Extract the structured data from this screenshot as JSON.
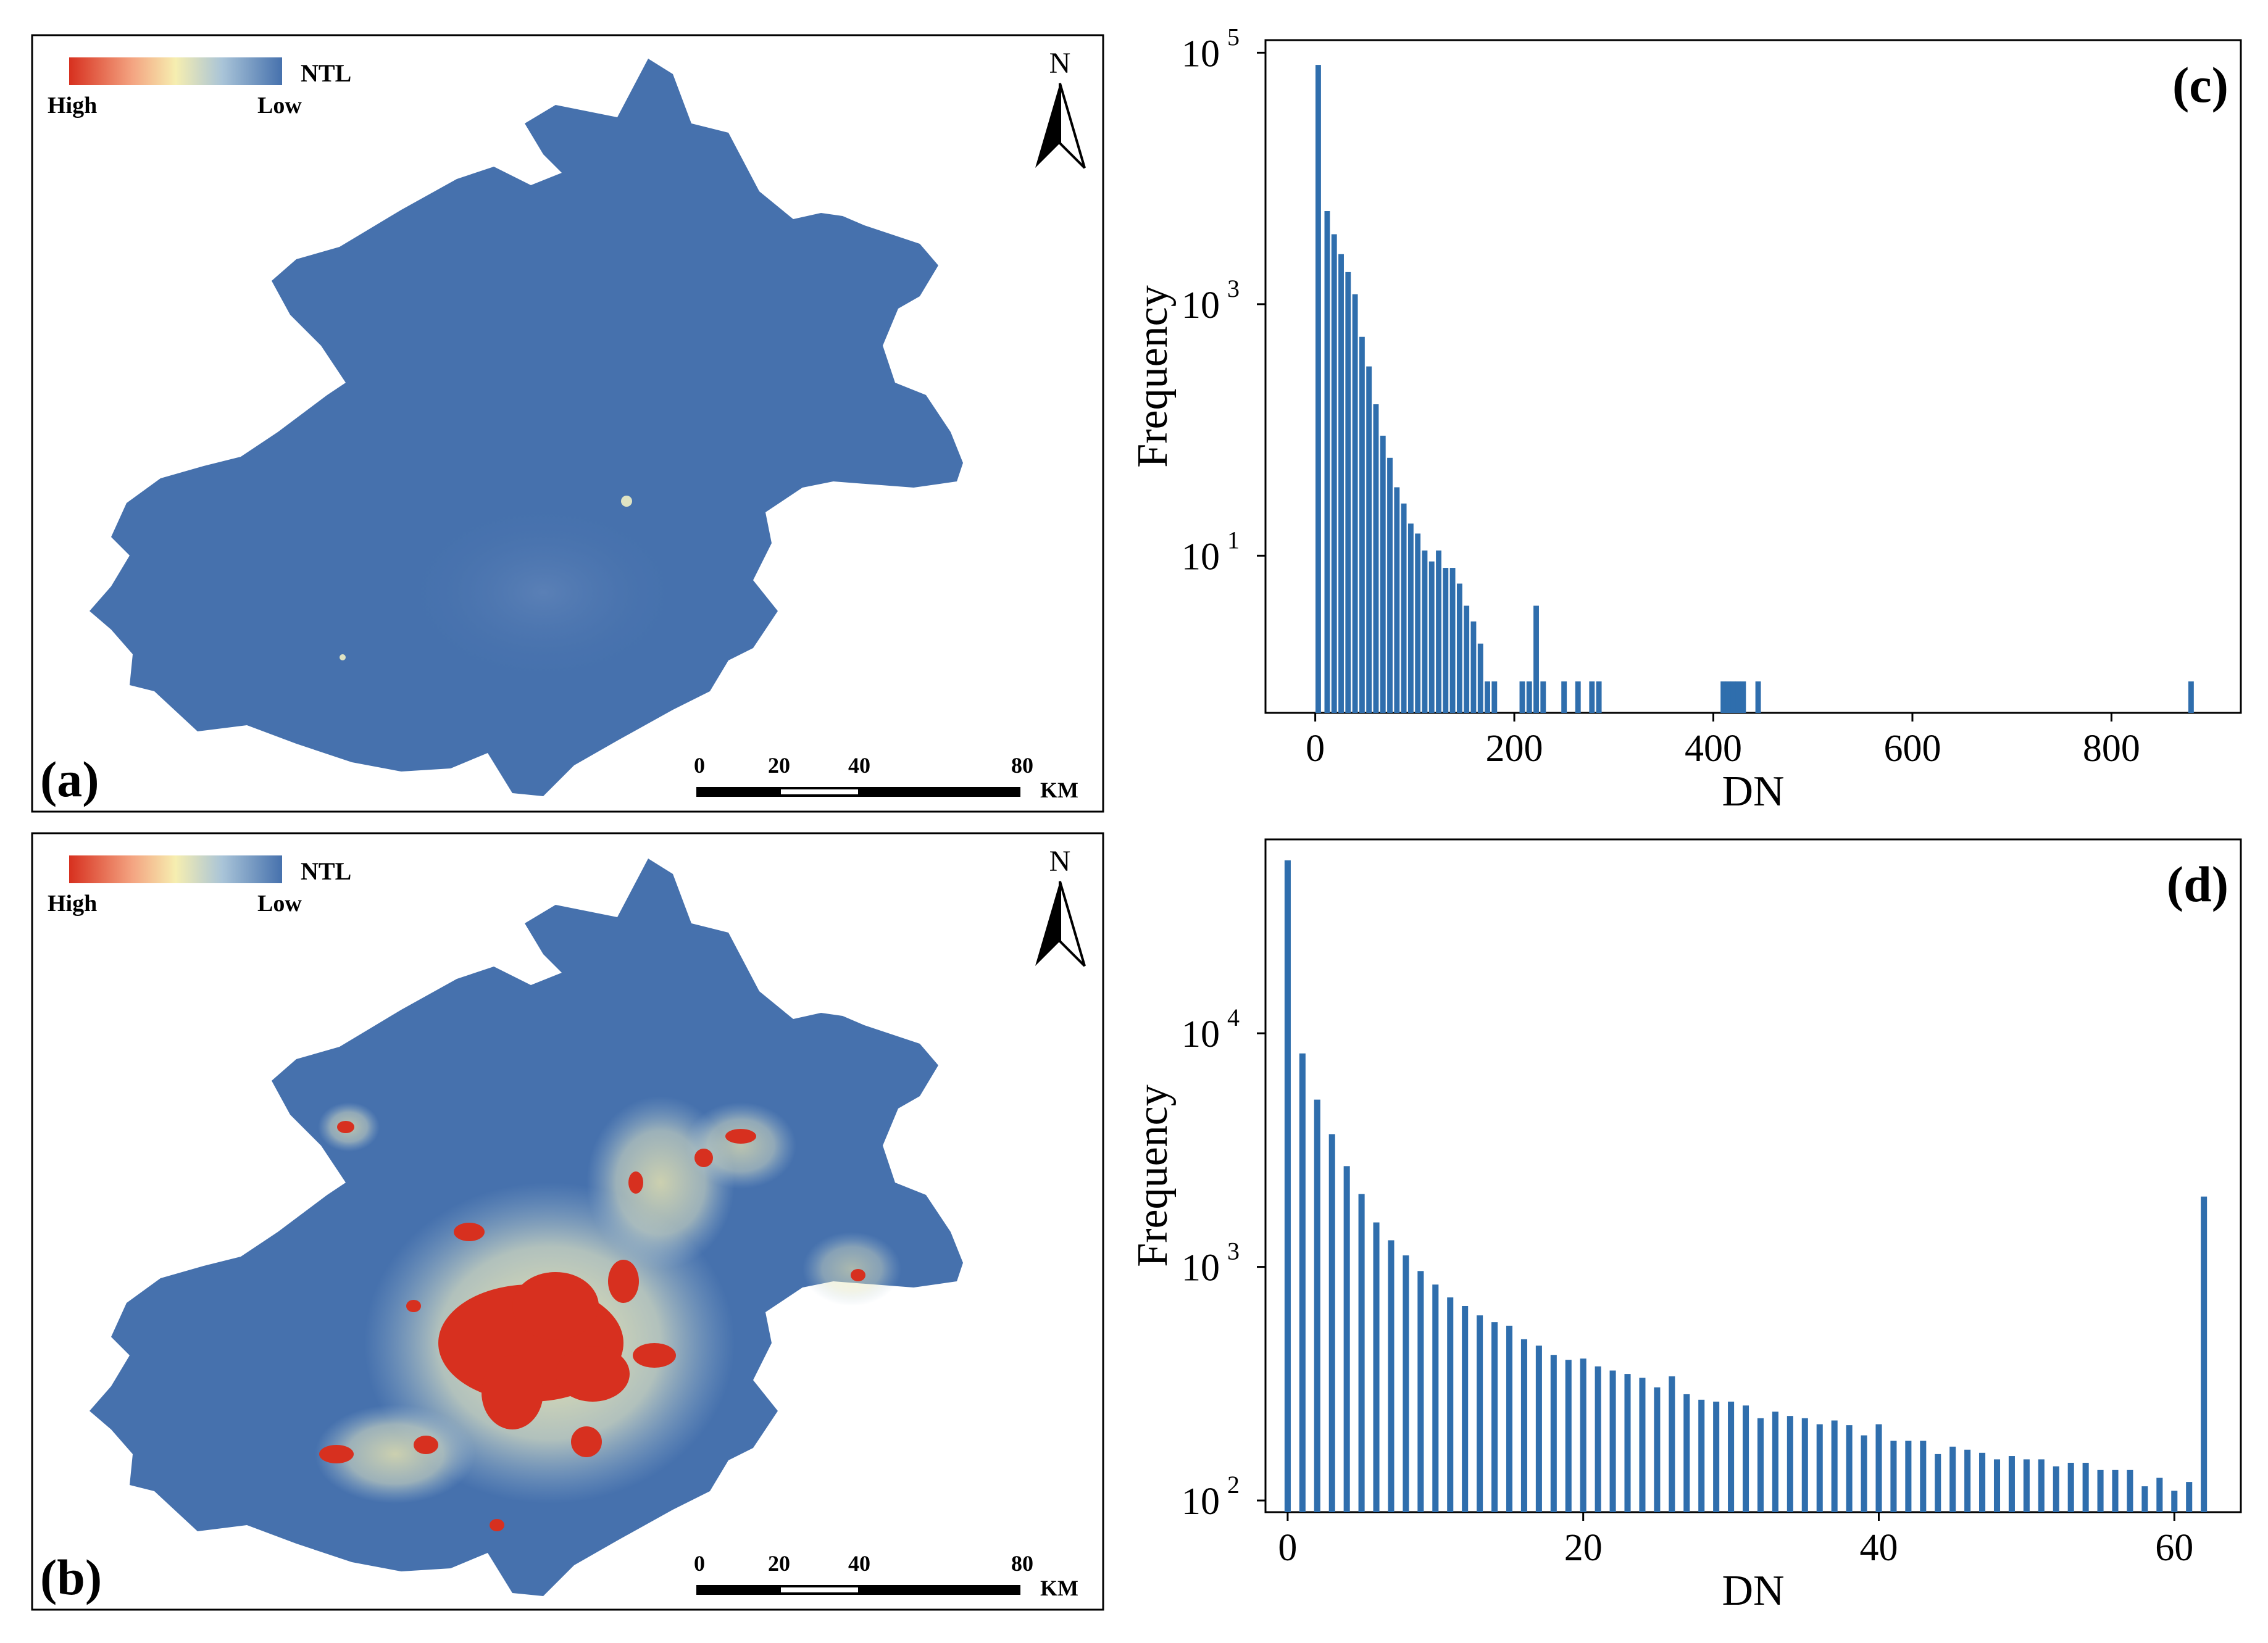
{
  "panels": {
    "a": {
      "label": "(a)",
      "legend": {
        "title": "NTL",
        "high": "High",
        "low": "Low"
      },
      "north": "N",
      "scalebar": {
        "ticks": [
          "0",
          "20",
          "40",
          "80"
        ],
        "unit": "KM"
      }
    },
    "b": {
      "label": "(b)",
      "legend": {
        "title": "NTL",
        "high": "High",
        "low": "Low"
      },
      "north": "N",
      "scalebar": {
        "ticks": [
          "0",
          "20",
          "40",
          "80"
        ],
        "unit": "KM"
      }
    }
  },
  "colors": {
    "high": "#d7301f",
    "mid": "#f6eeb0",
    "low": "#4671ad",
    "bar": "#2f6ead",
    "frame": "#000000"
  },
  "chart_data": [
    {
      "id": "c",
      "panel_label": "(c)",
      "type": "bar",
      "yscale": "log",
      "xlabel": "DN",
      "ylabel": "Frequency",
      "xlim": [
        -50,
        930
      ],
      "ylim_exp": [
        -0.25,
        5.1
      ],
      "xticks": [
        0,
        200,
        400,
        600,
        800
      ],
      "yticks": [
        {
          "exp": 1,
          "base": "10",
          "sup": "1"
        },
        {
          "exp": 3,
          "base": "10",
          "sup": "3"
        },
        {
          "exp": 5,
          "base": "10",
          "sup": "5"
        }
      ],
      "bar_width": 5.5,
      "x": [
        3,
        12,
        19,
        26,
        33,
        40,
        47,
        54,
        61,
        68,
        75,
        82,
        89,
        96,
        103,
        110,
        117,
        124,
        131,
        138,
        145,
        152,
        159,
        166,
        173,
        180,
        208,
        215,
        222,
        229,
        250,
        264,
        278,
        285,
        410,
        415,
        420,
        425,
        430,
        445,
        880
      ],
      "values": [
        80000,
        5500,
        3600,
        2500,
        1800,
        1200,
        550,
        320,
        160,
        90,
        60,
        35,
        26,
        18,
        15,
        11,
        9,
        11,
        8,
        8,
        6,
        4,
        3,
        2,
        1,
        1,
        1,
        1,
        4,
        1,
        1,
        1,
        1,
        1,
        1,
        1,
        1,
        1,
        1,
        1,
        1
      ]
    },
    {
      "id": "d",
      "panel_label": "(d)",
      "type": "bar",
      "yscale": "log",
      "xlabel": "DN",
      "ylabel": "Frequency",
      "xlim": [
        -1.5,
        64.5
      ],
      "ylim_exp": [
        1.95,
        4.83
      ],
      "xticks": [
        0,
        20,
        40,
        60
      ],
      "yticks": [
        {
          "exp": 2,
          "base": "10",
          "sup": "2"
        },
        {
          "exp": 3,
          "base": "10",
          "sup": "3"
        },
        {
          "exp": 4,
          "base": "10",
          "sup": "4"
        }
      ],
      "bar_width": 0.42,
      "x": [
        0,
        1,
        2,
        3,
        4,
        5,
        6,
        7,
        8,
        9,
        10,
        11,
        12,
        13,
        14,
        15,
        16,
        17,
        18,
        19,
        20,
        21,
        22,
        23,
        24,
        25,
        26,
        27,
        28,
        29,
        30,
        31,
        32,
        33,
        34,
        35,
        36,
        37,
        38,
        39,
        40,
        41,
        42,
        43,
        44,
        45,
        46,
        47,
        48,
        49,
        50,
        51,
        52,
        53,
        54,
        55,
        56,
        57,
        58,
        59,
        60,
        61,
        62
      ],
      "values": [
        55000,
        8200,
        5200,
        3700,
        2700,
        2050,
        1550,
        1300,
        1120,
        960,
        840,
        740,
        680,
        620,
        580,
        560,
        490,
        460,
        420,
        400,
        405,
        375,
        360,
        348,
        335,
        305,
        340,
        285,
        270,
        265,
        265,
        255,
        225,
        240,
        230,
        225,
        212,
        220,
        210,
        190,
        212,
        180,
        180,
        180,
        158,
        170,
        165,
        160,
        150,
        155,
        150,
        150,
        140,
        145,
        145,
        135,
        135,
        135,
        115,
        125,
        110,
        120,
        2000
      ]
    }
  ]
}
